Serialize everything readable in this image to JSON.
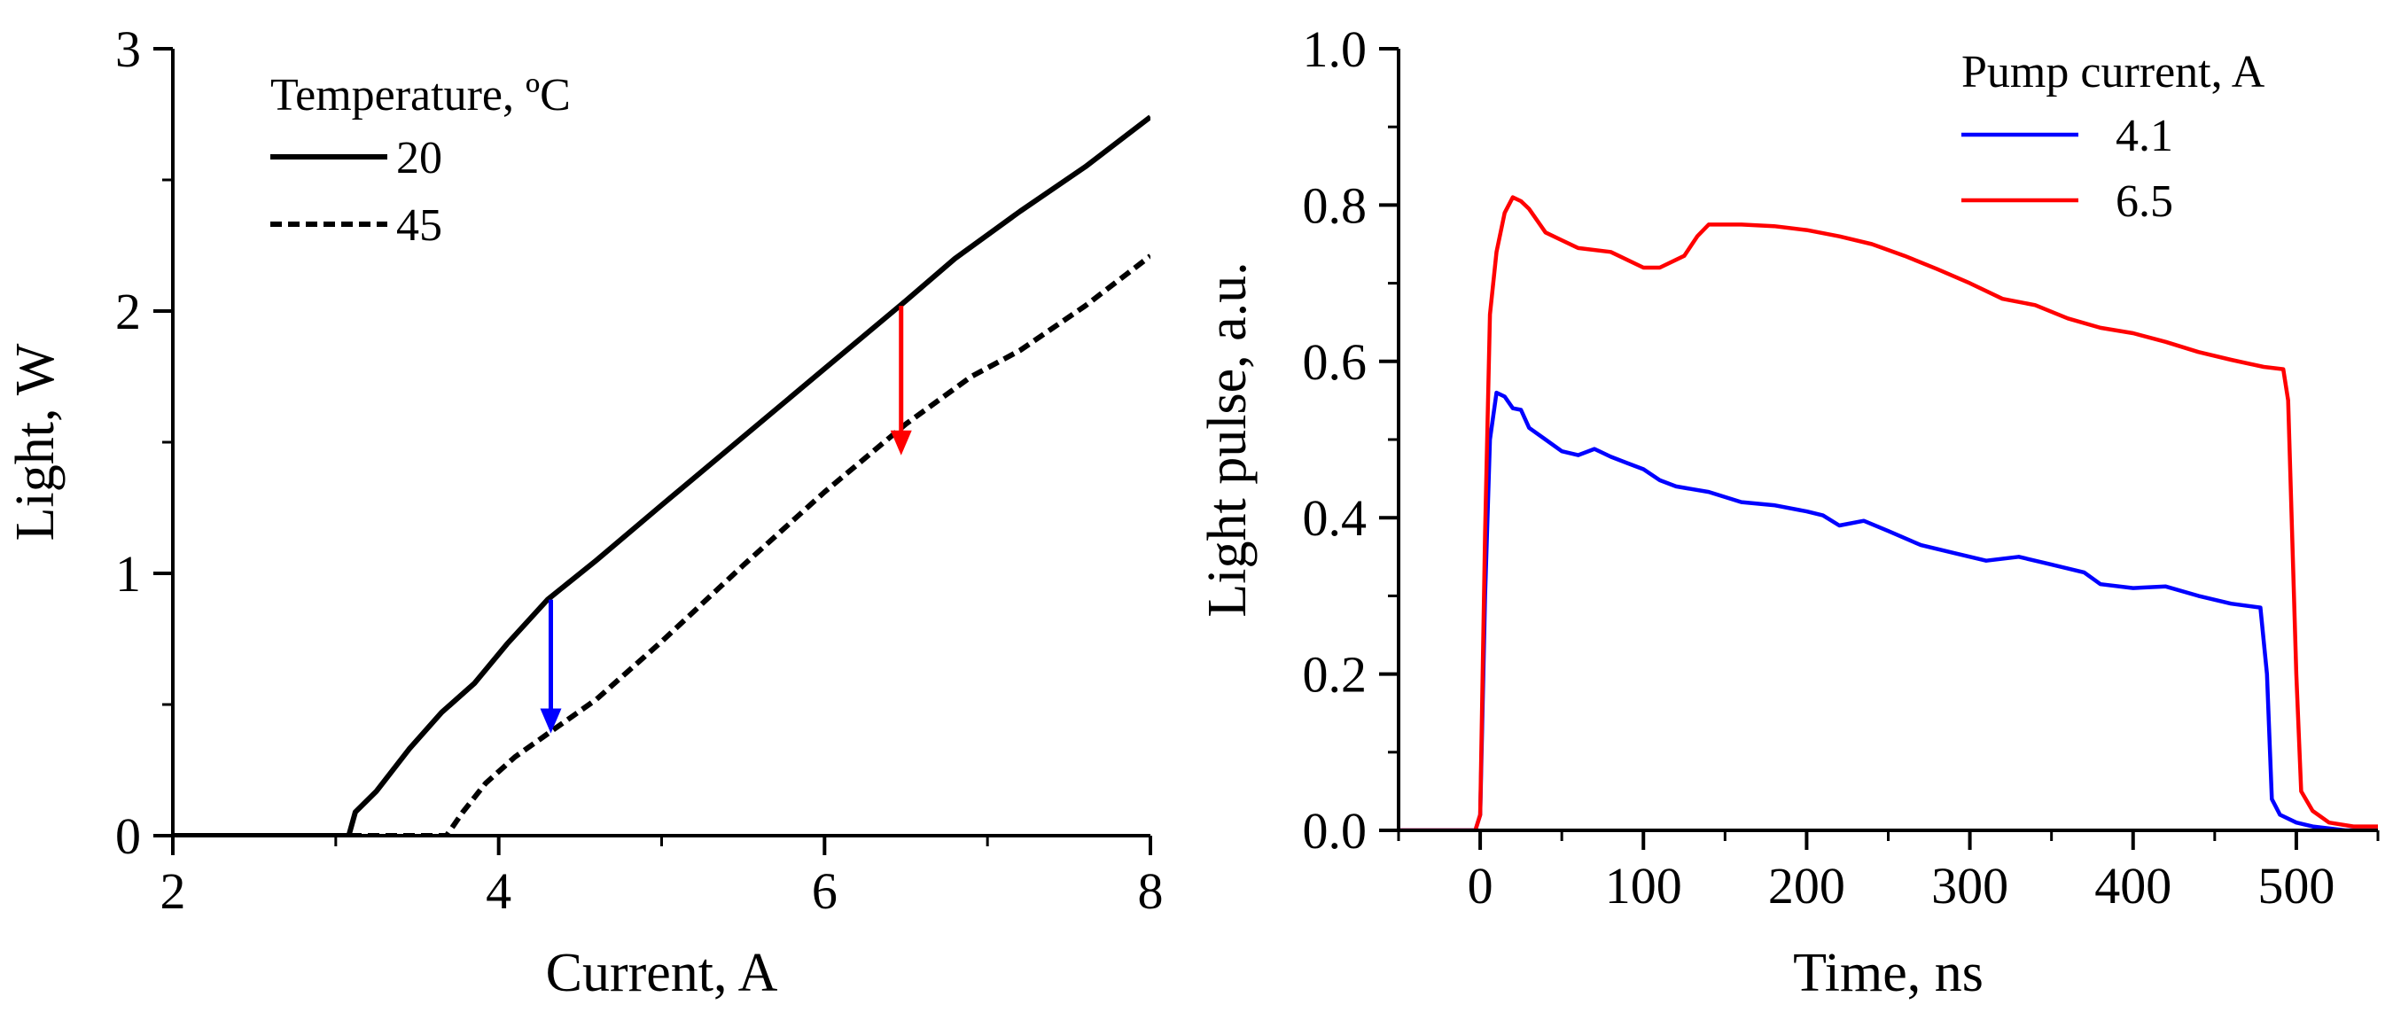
{
  "chart_data": [
    {
      "type": "line",
      "xlabel": "Current, A",
      "ylabel": "Light, W",
      "xlim": [
        2,
        8
      ],
      "ylim": [
        0,
        3
      ],
      "xticks": [
        2,
        4,
        6,
        8
      ],
      "yticks": [
        0,
        1,
        2,
        3
      ],
      "xtick_labels": [
        "2",
        "4",
        "6",
        "8"
      ],
      "ytick_labels": [
        "0",
        "1",
        "2",
        "3"
      ],
      "grid": false,
      "legend": {
        "title": "Temperature, ºC",
        "placement": "top-left",
        "entries": [
          {
            "label": "20",
            "style": "solid"
          },
          {
            "label": "45",
            "style": "dashed"
          }
        ]
      },
      "series": [
        {
          "name": "20",
          "color": "#000000",
          "style": "solid",
          "points": [
            [
              2.0,
              0.0
            ],
            [
              3.08,
              0.0
            ],
            [
              3.12,
              0.09
            ],
            [
              3.25,
              0.17
            ],
            [
              3.45,
              0.33
            ],
            [
              3.65,
              0.47
            ],
            [
              3.85,
              0.58
            ],
            [
              4.05,
              0.73
            ],
            [
              4.3,
              0.9
            ],
            [
              4.6,
              1.05
            ],
            [
              5.0,
              1.26
            ],
            [
              5.5,
              1.52
            ],
            [
              6.0,
              1.78
            ],
            [
              6.5,
              2.04
            ],
            [
              6.8,
              2.2
            ],
            [
              7.2,
              2.38
            ],
            [
              7.6,
              2.55
            ],
            [
              8.0,
              2.74
            ]
          ]
        },
        {
          "name": "45",
          "color": "#000000",
          "style": "dashed",
          "points": [
            [
              2.0,
              0.0
            ],
            [
              3.68,
              0.0
            ],
            [
              3.78,
              0.09
            ],
            [
              3.92,
              0.2
            ],
            [
              4.1,
              0.3
            ],
            [
              4.35,
              0.41
            ],
            [
              4.6,
              0.52
            ],
            [
              5.0,
              0.74
            ],
            [
              5.5,
              1.03
            ],
            [
              6.0,
              1.31
            ],
            [
              6.5,
              1.57
            ],
            [
              6.9,
              1.75
            ],
            [
              7.2,
              1.85
            ],
            [
              7.6,
              2.02
            ],
            [
              8.0,
              2.21
            ]
          ]
        }
      ],
      "annotations": [
        {
          "type": "arrow",
          "color": "#0000ff",
          "x": 4.32,
          "y_from": 0.9,
          "y_to": 0.39
        },
        {
          "type": "arrow",
          "color": "#ff0000",
          "x": 6.47,
          "y_from": 2.02,
          "y_to": 1.45
        }
      ]
    },
    {
      "type": "line",
      "xlabel": "Time, ns",
      "ylabel": "Light pulse, a.u.",
      "xlim": [
        -50,
        550
      ],
      "ylim": [
        0.0,
        1.0
      ],
      "xticks": [
        0,
        100,
        200,
        300,
        400,
        500
      ],
      "yticks": [
        0.0,
        0.2,
        0.4,
        0.6,
        0.8,
        1.0
      ],
      "xtick_labels": [
        "0",
        "100",
        "200",
        "300",
        "400",
        "500"
      ],
      "ytick_labels": [
        "0.0",
        "0.2",
        "0.4",
        "0.6",
        "0.8",
        "1.0"
      ],
      "grid": false,
      "legend": {
        "title": "Pump current, A",
        "placement": "top-right",
        "entries": [
          {
            "label": "4.1",
            "color": "#0000ff"
          },
          {
            "label": "6.5",
            "color": "#ff0000"
          }
        ]
      },
      "series": [
        {
          "name": "4.1",
          "color": "#0000ff",
          "points": [
            [
              -50,
              0.0
            ],
            [
              -3,
              0.0
            ],
            [
              0,
              0.02
            ],
            [
              3,
              0.3
            ],
            [
              6,
              0.5
            ],
            [
              10,
              0.56
            ],
            [
              15,
              0.555
            ],
            [
              20,
              0.54
            ],
            [
              25,
              0.538
            ],
            [
              30,
              0.515
            ],
            [
              40,
              0.5
            ],
            [
              50,
              0.485
            ],
            [
              60,
              0.48
            ],
            [
              70,
              0.488
            ],
            [
              80,
              0.478
            ],
            [
              90,
              0.47
            ],
            [
              100,
              0.462
            ],
            [
              110,
              0.448
            ],
            [
              120,
              0.44
            ],
            [
              140,
              0.433
            ],
            [
              160,
              0.42
            ],
            [
              180,
              0.416
            ],
            [
              200,
              0.408
            ],
            [
              210,
              0.403
            ],
            [
              220,
              0.39
            ],
            [
              235,
              0.396
            ],
            [
              250,
              0.383
            ],
            [
              270,
              0.365
            ],
            [
              290,
              0.355
            ],
            [
              310,
              0.345
            ],
            [
              330,
              0.35
            ],
            [
              350,
              0.34
            ],
            [
              370,
              0.33
            ],
            [
              380,
              0.315
            ],
            [
              400,
              0.31
            ],
            [
              420,
              0.312
            ],
            [
              440,
              0.3
            ],
            [
              460,
              0.29
            ],
            [
              478,
              0.285
            ],
            [
              482,
              0.2
            ],
            [
              485,
              0.04
            ],
            [
              490,
              0.02
            ],
            [
              500,
              0.01
            ],
            [
              510,
              0.005
            ],
            [
              530,
              0.0
            ],
            [
              550,
              0.0
            ]
          ]
        },
        {
          "name": "6.5",
          "color": "#ff0000",
          "points": [
            [
              -50,
              0.0
            ],
            [
              -3,
              0.0
            ],
            [
              0,
              0.02
            ],
            [
              3,
              0.38
            ],
            [
              6,
              0.66
            ],
            [
              10,
              0.74
            ],
            [
              15,
              0.79
            ],
            [
              20,
              0.81
            ],
            [
              25,
              0.805
            ],
            [
              30,
              0.795
            ],
            [
              40,
              0.765
            ],
            [
              50,
              0.755
            ],
            [
              60,
              0.745
            ],
            [
              80,
              0.74
            ],
            [
              100,
              0.72
            ],
            [
              110,
              0.72
            ],
            [
              125,
              0.735
            ],
            [
              133,
              0.76
            ],
            [
              140,
              0.775
            ],
            [
              160,
              0.775
            ],
            [
              180,
              0.773
            ],
            [
              200,
              0.768
            ],
            [
              220,
              0.76
            ],
            [
              240,
              0.75
            ],
            [
              260,
              0.735
            ],
            [
              280,
              0.718
            ],
            [
              300,
              0.7
            ],
            [
              320,
              0.68
            ],
            [
              340,
              0.672
            ],
            [
              360,
              0.655
            ],
            [
              380,
              0.643
            ],
            [
              400,
              0.636
            ],
            [
              420,
              0.625
            ],
            [
              440,
              0.612
            ],
            [
              460,
              0.602
            ],
            [
              480,
              0.593
            ],
            [
              492,
              0.59
            ],
            [
              495,
              0.55
            ],
            [
              500,
              0.2
            ],
            [
              503,
              0.05
            ],
            [
              510,
              0.025
            ],
            [
              520,
              0.01
            ],
            [
              535,
              0.005
            ],
            [
              550,
              0.005
            ]
          ]
        }
      ]
    }
  ]
}
